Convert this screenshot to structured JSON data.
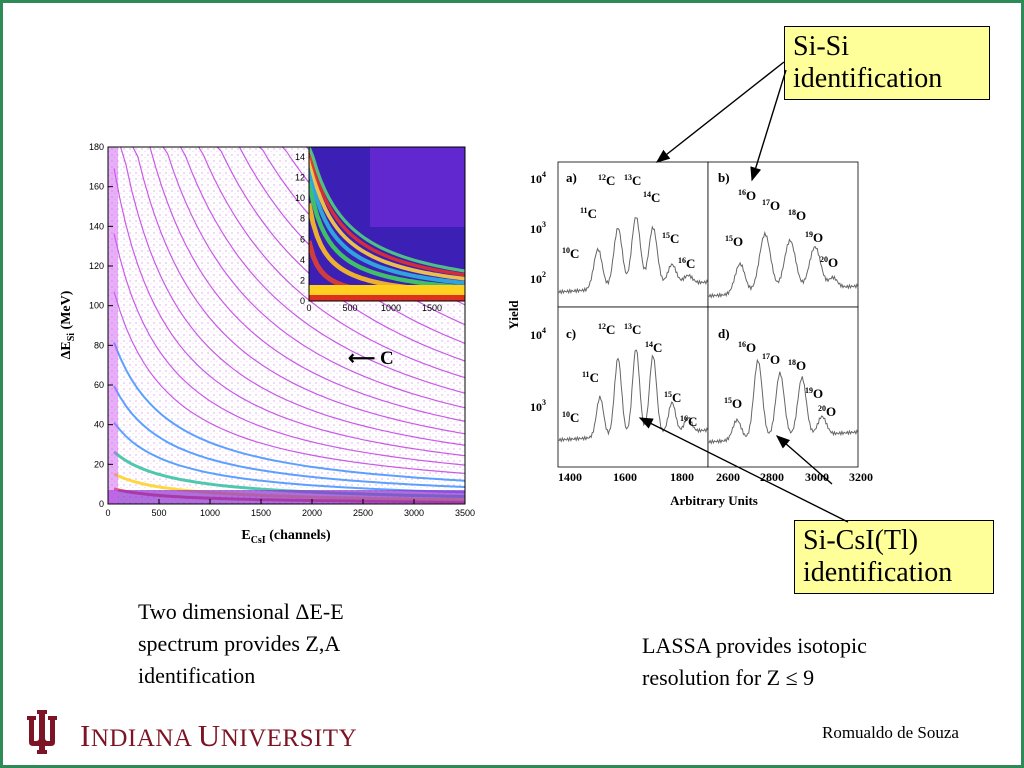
{
  "slide": {
    "border_color": "#2e8b57",
    "callout_top": {
      "line1": "Si-Si",
      "line2": "identification"
    },
    "callout_bottom": {
      "line1": "Si-CsI(Tl)",
      "line2": "identification"
    },
    "caption_left": {
      "line1": "Two dimensional ΔE-E",
      "line2": "spectrum provides Z,A",
      "line3": "identification"
    },
    "caption_right": {
      "line1": "LASSA provides isotopic",
      "line2": "resolution for Z ≤ 9"
    },
    "footer": {
      "university_prefix_i": "I",
      "university_rest_1": "NDIANA ",
      "university_prefix_u": "U",
      "university_rest_2": "NIVERSITY",
      "author": "Romualdo de Souza",
      "logo_color": "#7d1426"
    }
  },
  "left_plot": {
    "y_label_delta": "ΔE",
    "y_label_sub": "Si",
    "y_label_unit": " (MeV)",
    "x_label_main": "E",
    "x_label_sub": "CsI",
    "x_label_unit": " (channels)",
    "y_ticks": [
      "180",
      "160",
      "140",
      "120",
      "100",
      "80",
      "60",
      "40",
      "20",
      "0"
    ],
    "x_ticks": [
      "0",
      "500",
      "1000",
      "1500",
      "2000",
      "2500",
      "3000",
      "3500"
    ],
    "inset_y_ticks": [
      "14",
      "12",
      "10",
      "8",
      "6",
      "4",
      "2",
      "0"
    ],
    "inset_x_ticks": [
      "0",
      "500",
      "1000",
      "1500"
    ],
    "carbon_marker": "⟵ C"
  },
  "right_plot": {
    "y_axis_label": "Yield",
    "x_axis_label": "Arbitrary Units",
    "y_tick_10": "10",
    "y_exp_4": "4",
    "y_exp_3": "3",
    "y_exp_2": "2",
    "x_ticks_left": [
      "1400",
      "1600",
      "1800"
    ],
    "x_ticks_right": [
      "2600",
      "2800",
      "3000",
      "3200"
    ],
    "panels": [
      {
        "tag": "a)",
        "isotopes": [
          {
            "m": "10",
            "e": "C"
          },
          {
            "m": "11",
            "e": "C"
          },
          {
            "m": "12",
            "e": "C"
          },
          {
            "m": "13",
            "e": "C"
          },
          {
            "m": "14",
            "e": "C"
          },
          {
            "m": "15",
            "e": "C"
          },
          {
            "m": "16",
            "e": "C"
          }
        ]
      },
      {
        "tag": "b)",
        "isotopes": [
          {
            "m": "15",
            "e": "O"
          },
          {
            "m": "16",
            "e": "O"
          },
          {
            "m": "17",
            "e": "O"
          },
          {
            "m": "18",
            "e": "O"
          },
          {
            "m": "19",
            "e": "O"
          },
          {
            "m": "20",
            "e": "O"
          }
        ]
      },
      {
        "tag": "c)",
        "isotopes": [
          {
            "m": "10",
            "e": "C"
          },
          {
            "m": "11",
            "e": "C"
          },
          {
            "m": "12",
            "e": "C"
          },
          {
            "m": "13",
            "e": "C"
          },
          {
            "m": "14",
            "e": "C"
          },
          {
            "m": "15",
            "e": "C"
          },
          {
            "m": "16",
            "e": "C"
          }
        ]
      },
      {
        "tag": "d)",
        "isotopes": [
          {
            "m": "15",
            "e": "O"
          },
          {
            "m": "16",
            "e": "O"
          },
          {
            "m": "17",
            "e": "O"
          },
          {
            "m": "18",
            "e": "O"
          },
          {
            "m": "19",
            "e": "O"
          },
          {
            "m": "20",
            "e": "O"
          }
        ]
      }
    ]
  }
}
